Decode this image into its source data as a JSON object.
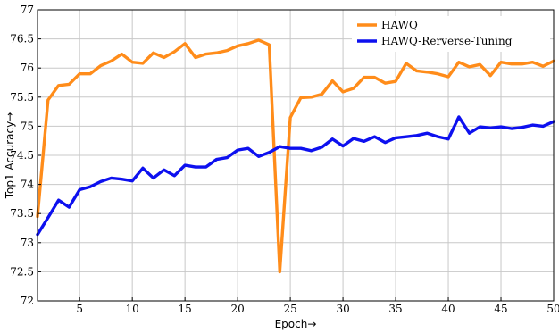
{
  "chart_data": {
    "type": "line",
    "xlabel": "Epoch→",
    "ylabel": "Top1 Accuracy→",
    "xlim": [
      1,
      50
    ],
    "ylim": [
      72,
      77
    ],
    "xticks": [
      5,
      10,
      15,
      20,
      25,
      30,
      35,
      40,
      45,
      50
    ],
    "yticks": [
      72,
      72.5,
      73,
      73.5,
      74,
      74.5,
      75,
      75.5,
      76,
      76.5,
      77
    ],
    "grid": true,
    "legend_position": "top-right",
    "x": [
      1,
      2,
      3,
      4,
      5,
      6,
      7,
      8,
      9,
      10,
      11,
      12,
      13,
      14,
      15,
      16,
      17,
      18,
      19,
      20,
      21,
      22,
      23,
      24,
      25,
      26,
      27,
      28,
      29,
      30,
      31,
      32,
      33,
      34,
      35,
      36,
      37,
      38,
      39,
      40,
      41,
      42,
      43,
      44,
      45,
      46,
      47,
      48,
      49,
      50
    ],
    "series": [
      {
        "name": "HAWQ",
        "color": "#ff8c1a",
        "values": [
          73.45,
          75.45,
          75.7,
          75.72,
          75.9,
          75.9,
          76.04,
          76.12,
          76.24,
          76.1,
          76.08,
          76.26,
          76.18,
          76.28,
          76.42,
          76.18,
          76.24,
          76.26,
          76.3,
          76.38,
          76.42,
          76.48,
          76.4,
          72.5,
          75.15,
          75.49,
          75.5,
          75.55,
          75.78,
          75.59,
          75.65,
          75.84,
          75.84,
          75.74,
          75.77,
          76.08,
          75.95,
          75.93,
          75.9,
          75.85,
          76.1,
          76.02,
          76.06,
          75.87,
          76.1,
          76.07,
          76.07,
          76.1,
          76.03,
          76.12
        ]
      },
      {
        "name": "HAWQ-Rerverse-Tuning",
        "color": "#0d10ef",
        "values": [
          73.14,
          73.43,
          73.73,
          73.61,
          73.91,
          73.96,
          74.05,
          74.11,
          74.09,
          74.06,
          74.28,
          74.11,
          74.25,
          74.15,
          74.33,
          74.3,
          74.3,
          74.43,
          74.46,
          74.59,
          74.62,
          74.48,
          74.55,
          74.65,
          74.62,
          74.62,
          74.58,
          74.64,
          74.78,
          74.66,
          74.79,
          74.74,
          74.82,
          74.72,
          74.8,
          74.82,
          74.84,
          74.88,
          74.82,
          74.78,
          75.16,
          74.88,
          74.99,
          74.97,
          74.99,
          74.96,
          74.98,
          75.02,
          75.0,
          75.08
        ]
      }
    ]
  }
}
